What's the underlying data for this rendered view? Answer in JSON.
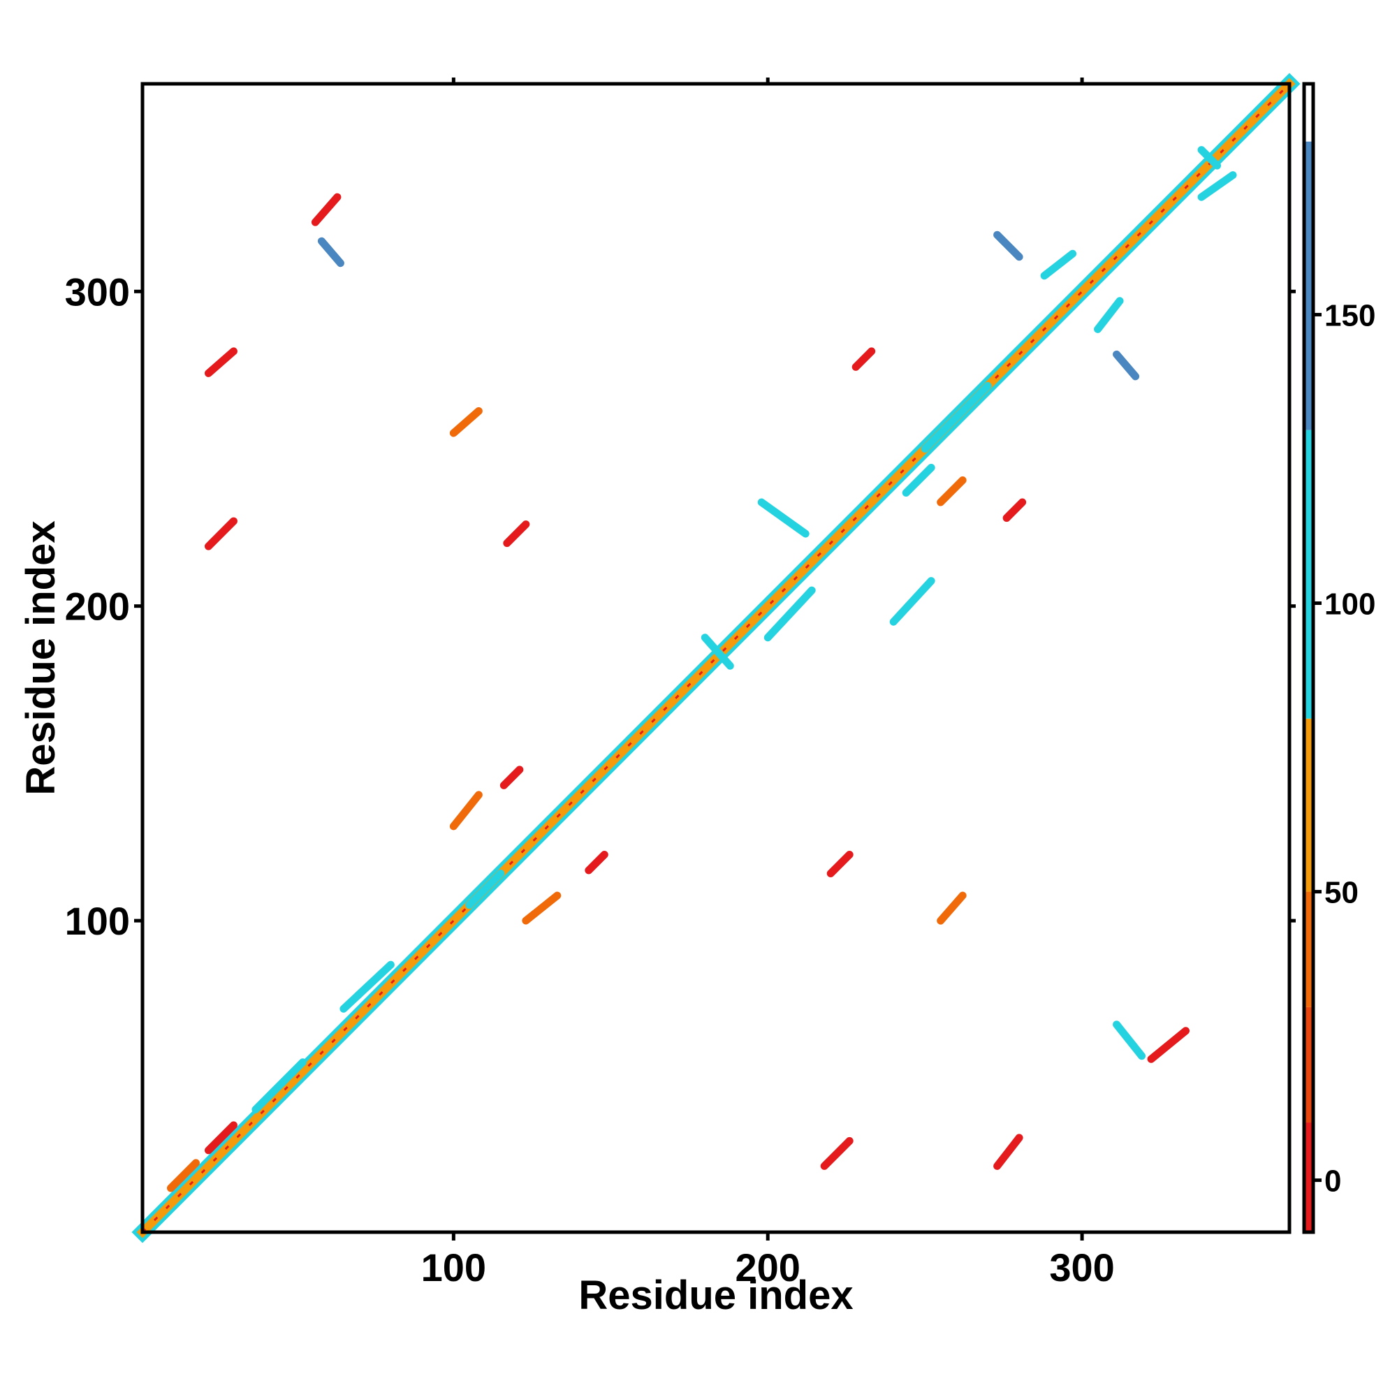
{
  "chart_data": {
    "type": "heatmap",
    "title": "",
    "xlabel": "Residue index",
    "ylabel": "Residue index",
    "xlim": [
      1,
      366
    ],
    "ylim": [
      1,
      366
    ],
    "x_ticks": [
      "100",
      "200",
      "300"
    ],
    "x_tick_values": [
      100,
      200,
      300
    ],
    "y_ticks": [
      "100",
      "200",
      "300"
    ],
    "y_tick_values": [
      100,
      200,
      300
    ],
    "grid": false,
    "legend": "colorbar-right",
    "colorbar": {
      "range": [
        -9,
        190
      ],
      "ticks": [
        "0",
        "50",
        "100",
        "150"
      ],
      "tick_values": [
        0,
        50,
        100,
        150
      ],
      "bands": [
        {
          "from": -9,
          "to": 10,
          "color": "#e41a1c"
        },
        {
          "from": 10,
          "to": 30,
          "color": "#e8450f"
        },
        {
          "from": 30,
          "to": 50,
          "color": "#f06a0a"
        },
        {
          "from": 50,
          "to": 80,
          "color": "#f59a0a"
        },
        {
          "from": 80,
          "to": 130,
          "color": "#25d3e0"
        },
        {
          "from": 130,
          "to": 180,
          "color": "#4a86c0"
        },
        {
          "from": 180,
          "to": 190,
          "color": "#ffffff"
        }
      ]
    },
    "features": [
      {
        "kind": "diagonal",
        "from": 1,
        "to": 366,
        "value": 60
      },
      {
        "kind": "segment",
        "x1": 22,
        "y1": 27,
        "x2": 30,
        "y2": 35,
        "value": 5
      },
      {
        "kind": "segment",
        "x1": 10,
        "y1": 15,
        "x2": 18,
        "y2": 23,
        "value": 45
      },
      {
        "kind": "segment",
        "x1": 218,
        "y1": 22,
        "x2": 226,
        "y2": 30,
        "value": 5
      },
      {
        "kind": "segment",
        "x1": 273,
        "y1": 22,
        "x2": 280,
        "y2": 31,
        "value": 5
      },
      {
        "kind": "segment",
        "x1": 322,
        "y1": 56,
        "x2": 333,
        "y2": 65,
        "value": 5
      },
      {
        "kind": "segment",
        "x1": 311,
        "y1": 67,
        "x2": 319,
        "y2": 57,
        "value": 110
      },
      {
        "kind": "segment",
        "x1": 220,
        "y1": 115,
        "x2": 226,
        "y2": 121,
        "value": 5
      },
      {
        "kind": "segment",
        "x1": 143,
        "y1": 116,
        "x2": 148,
        "y2": 121,
        "value": 5
      },
      {
        "kind": "segment",
        "x1": 116,
        "y1": 143,
        "x2": 121,
        "y2": 148,
        "value": 5
      },
      {
        "kind": "segment",
        "x1": 22,
        "y1": 219,
        "x2": 30,
        "y2": 227,
        "value": 5
      },
      {
        "kind": "segment",
        "x1": 117,
        "y1": 220,
        "x2": 123,
        "y2": 226,
        "value": 5
      },
      {
        "kind": "segment",
        "x1": 22,
        "y1": 274,
        "x2": 30,
        "y2": 281,
        "value": 5
      },
      {
        "kind": "segment",
        "x1": 56,
        "y1": 322,
        "x2": 63,
        "y2": 330,
        "value": 5
      },
      {
        "kind": "segment",
        "x1": 58,
        "y1": 316,
        "x2": 64,
        "y2": 309,
        "value": 150
      },
      {
        "kind": "segment",
        "x1": 273,
        "y1": 318,
        "x2": 280,
        "y2": 311,
        "value": 150
      },
      {
        "kind": "segment",
        "x1": 311,
        "y1": 280,
        "x2": 317,
        "y2": 273,
        "value": 150
      },
      {
        "kind": "segment",
        "x1": 180,
        "y1": 190,
        "x2": 188,
        "y2": 181,
        "value": 110
      },
      {
        "kind": "segment",
        "x1": 244,
        "y1": 236,
        "x2": 252,
        "y2": 244,
        "value": 110
      },
      {
        "kind": "segment",
        "x1": 255,
        "y1": 233,
        "x2": 262,
        "y2": 240,
        "value": 40
      },
      {
        "kind": "segment",
        "x1": 200,
        "y1": 190,
        "x2": 214,
        "y2": 205,
        "value": 110
      },
      {
        "kind": "segment",
        "x1": 250,
        "y1": 250,
        "x2": 270,
        "y2": 270,
        "value": 110
      },
      {
        "kind": "segment",
        "x1": 65,
        "y1": 72,
        "x2": 80,
        "y2": 86,
        "value": 110
      },
      {
        "kind": "segment",
        "x1": 37,
        "y1": 40,
        "x2": 52,
        "y2": 55,
        "value": 110
      },
      {
        "kind": "segment",
        "x1": 105,
        "y1": 105,
        "x2": 115,
        "y2": 115,
        "value": 110
      },
      {
        "kind": "segment",
        "x1": 255,
        "y1": 100,
        "x2": 262,
        "y2": 108,
        "value": 40
      },
      {
        "kind": "segment",
        "x1": 100,
        "y1": 255,
        "x2": 108,
        "y2": 262,
        "value": 40
      },
      {
        "kind": "segment",
        "x1": 123,
        "y1": 100,
        "x2": 133,
        "y2": 108,
        "value": 40
      },
      {
        "kind": "segment",
        "x1": 100,
        "y1": 130,
        "x2": 108,
        "y2": 140,
        "value": 40
      },
      {
        "kind": "segment",
        "x1": 228,
        "y1": 276,
        "x2": 233,
        "y2": 281,
        "value": 5
      },
      {
        "kind": "segment",
        "x1": 276,
        "y1": 228,
        "x2": 281,
        "y2": 233,
        "value": 5
      },
      {
        "kind": "segment",
        "x1": 338,
        "y1": 345,
        "x2": 343,
        "y2": 340,
        "value": 110
      },
      {
        "kind": "segment",
        "x1": 338,
        "y1": 330,
        "x2": 348,
        "y2": 337,
        "value": 110
      },
      {
        "kind": "segment",
        "x1": 288,
        "y1": 305,
        "x2": 297,
        "y2": 312,
        "value": 110
      },
      {
        "kind": "segment",
        "x1": 305,
        "y1": 288,
        "x2": 312,
        "y2": 297,
        "value": 110
      },
      {
        "kind": "segment",
        "x1": 198,
        "y1": 233,
        "x2": 212,
        "y2": 223,
        "value": 110
      },
      {
        "kind": "segment",
        "x1": 240,
        "y1": 195,
        "x2": 252,
        "y2": 208,
        "value": 110
      }
    ]
  }
}
